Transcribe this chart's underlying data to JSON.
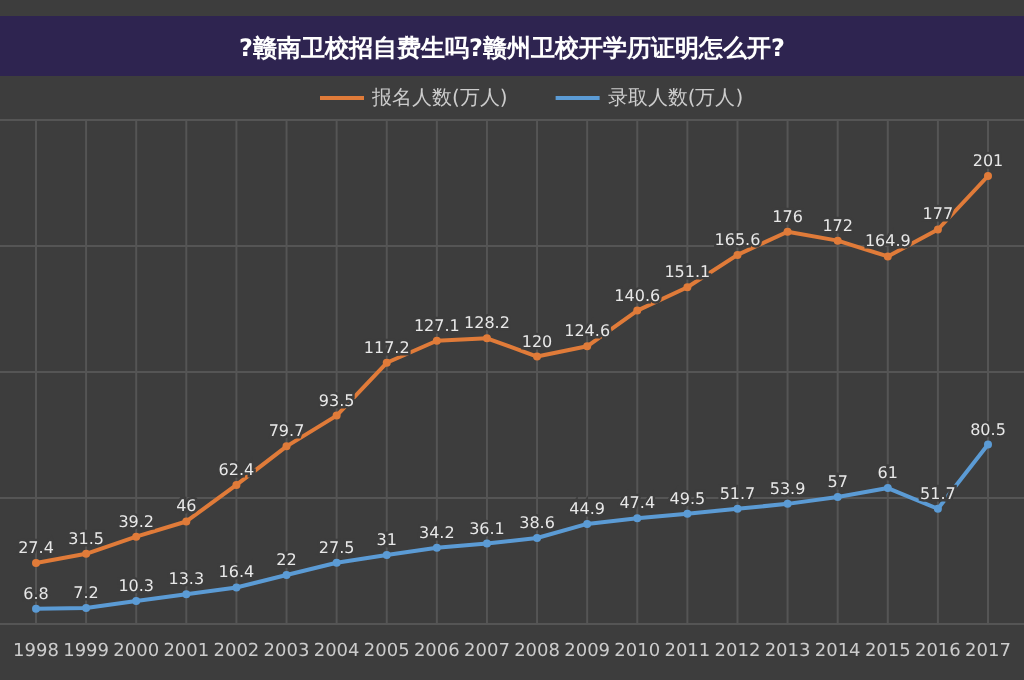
{
  "chart_data": {
    "type": "line",
    "title": "?赣南卫校招自费生吗?赣州卫校开学历证明怎么开?",
    "categories": [
      "1998",
      "1999",
      "2000",
      "2001",
      "2002",
      "2003",
      "2004",
      "2005",
      "2006",
      "2007",
      "2008",
      "2009",
      "2010",
      "2011",
      "2012",
      "2013",
      "2014",
      "2015",
      "2016",
      "2017"
    ],
    "series": [
      {
        "name": "报名人数(万人)",
        "color": "#e07b39",
        "values": [
          27.4,
          31.5,
          39.2,
          46,
          62.4,
          79.7,
          93.5,
          117.2,
          127.1,
          128.2,
          120,
          124.6,
          140.6,
          151.1,
          165.6,
          176,
          172,
          164.9,
          177,
          201
        ]
      },
      {
        "name": "录取人数(万人)",
        "color": "#5b9bd5",
        "values": [
          6.8,
          7.2,
          10.3,
          13.3,
          16.4,
          22,
          27.5,
          31,
          34.2,
          36.1,
          38.6,
          44.9,
          47.4,
          49.5,
          51.7,
          53.9,
          57,
          61,
          51.7,
          80.5
        ]
      }
    ],
    "data_labels": true,
    "grid": true,
    "legend": "top",
    "marker": "circle",
    "line_style": "solid"
  }
}
